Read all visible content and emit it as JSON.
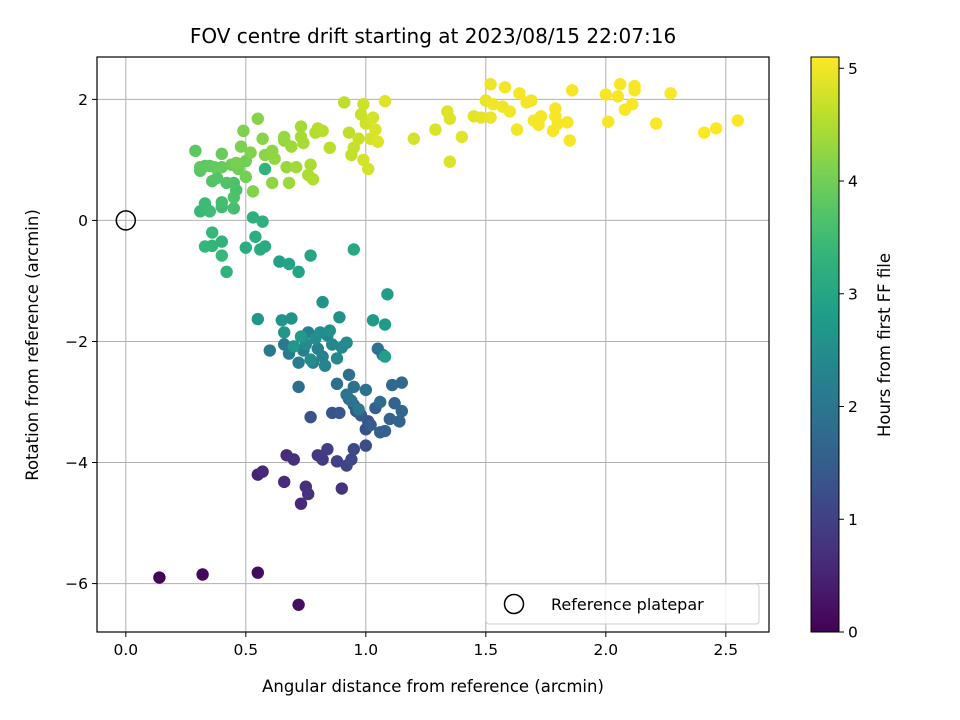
{
  "chart_data": {
    "type": "scatter",
    "title": "FOV centre drift starting at 2023/08/15 22:07:16",
    "xlabel": "Angular distance from reference (arcmin)",
    "ylabel": "Rotation from reference (arcmin)",
    "xlim": [
      -0.12,
      2.68
    ],
    "ylim": [
      -6.8,
      2.7
    ],
    "xticks": [
      "0.0",
      "0.5",
      "1.0",
      "1.5",
      "2.0",
      "2.5"
    ],
    "xtick_values": [
      0,
      0.5,
      1.0,
      1.5,
      2.0,
      2.5
    ],
    "yticks": [
      "−6",
      "−4",
      "−2",
      "0",
      "2"
    ],
    "ytick_values": [
      -6,
      -4,
      -2,
      0,
      2
    ],
    "grid": true,
    "colormap": "viridis",
    "colorbar": {
      "label": "Hours from first FF file",
      "range": [
        0,
        5.1
      ],
      "ticks": [
        "0",
        "1",
        "2",
        "3",
        "4",
        "5"
      ],
      "tick_values": [
        0,
        1,
        2,
        3,
        4,
        5
      ]
    },
    "legend": {
      "location": "lower right",
      "entries": [
        {
          "label": "Reference platepar",
          "marker": "open-circle"
        }
      ]
    },
    "reference_point": {
      "x": 0,
      "y": 0
    },
    "points": [
      [
        0.14,
        -5.9,
        0.05
      ],
      [
        0.32,
        -5.85,
        0.1
      ],
      [
        0.55,
        -5.82,
        0.15
      ],
      [
        0.72,
        -6.35,
        0.2
      ],
      [
        0.55,
        -4.2,
        0.5
      ],
      [
        0.57,
        -4.15,
        0.55
      ],
      [
        0.66,
        -4.32,
        0.6
      ],
      [
        0.67,
        -3.88,
        0.65
      ],
      [
        0.7,
        -3.95,
        0.7
      ],
      [
        0.73,
        -4.68,
        0.62
      ],
      [
        0.75,
        -4.4,
        0.68
      ],
      [
        0.76,
        -4.52,
        0.72
      ],
      [
        0.9,
        -4.43,
        0.75
      ],
      [
        0.8,
        -3.88,
        0.85
      ],
      [
        0.82,
        -3.95,
        0.9
      ],
      [
        0.84,
        -3.78,
        0.95
      ],
      [
        0.88,
        -3.98,
        1.0
      ],
      [
        0.92,
        -4.05,
        1.05
      ],
      [
        0.94,
        -3.95,
        1.1
      ],
      [
        0.95,
        -3.78,
        1.12
      ],
      [
        1.0,
        -3.72,
        1.2
      ],
      [
        1.0,
        -3.45,
        1.25
      ],
      [
        1.01,
        -3.32,
        1.28
      ],
      [
        0.77,
        -3.25,
        1.3
      ],
      [
        0.86,
        -3.18,
        1.33
      ],
      [
        0.89,
        -3.18,
        1.35
      ],
      [
        0.93,
        -2.95,
        1.4
      ],
      [
        0.95,
        -3.05,
        1.42
      ],
      [
        0.96,
        -3.15,
        1.45
      ],
      [
        0.98,
        -3.22,
        1.48
      ],
      [
        1.02,
        -3.38,
        1.5
      ],
      [
        1.04,
        -3.1,
        1.52
      ],
      [
        1.06,
        -3.5,
        1.55
      ],
      [
        1.08,
        -3.48,
        1.58
      ],
      [
        1.1,
        -3.28,
        1.6
      ],
      [
        1.12,
        -3.02,
        1.62
      ],
      [
        1.14,
        -3.32,
        1.65
      ],
      [
        1.15,
        -3.15,
        1.68
      ],
      [
        1.11,
        -2.72,
        1.72
      ],
      [
        1.15,
        -2.68,
        1.75
      ],
      [
        1.06,
        -3.0,
        1.78
      ],
      [
        0.72,
        -2.75,
        1.8
      ],
      [
        0.88,
        -2.7,
        1.82
      ],
      [
        0.93,
        -2.55,
        1.85
      ],
      [
        0.95,
        -2.75,
        1.88
      ],
      [
        1.0,
        -2.8,
        1.9
      ],
      [
        1.05,
        -2.12,
        1.92
      ],
      [
        1.07,
        -2.22,
        1.95
      ],
      [
        0.92,
        -2.88,
        1.98
      ],
      [
        0.94,
        -2.98,
        2.0
      ],
      [
        0.97,
        -3.12,
        2.02
      ],
      [
        0.6,
        -2.15,
        2.05
      ],
      [
        0.66,
        -2.05,
        2.1
      ],
      [
        0.68,
        -2.2,
        2.12
      ],
      [
        0.72,
        -2.35,
        2.15
      ],
      [
        0.74,
        -2.15,
        2.18
      ],
      [
        0.76,
        -1.85,
        2.2
      ],
      [
        0.78,
        -2.35,
        2.22
      ],
      [
        0.8,
        -2.12,
        2.25
      ],
      [
        0.82,
        -2.25,
        2.28
      ],
      [
        0.83,
        -2.4,
        2.3
      ],
      [
        0.84,
        -1.9,
        2.32
      ],
      [
        0.86,
        -2.05,
        2.35
      ],
      [
        0.88,
        -2.28,
        2.38
      ],
      [
        0.9,
        -2.1,
        2.4
      ],
      [
        0.92,
        -2.02,
        2.42
      ],
      [
        0.75,
        -2.05,
        2.45
      ],
      [
        0.77,
        -2.3,
        2.48
      ],
      [
        0.79,
        -1.95,
        2.5
      ],
      [
        0.81,
        -1.85,
        2.52
      ],
      [
        0.85,
        -1.82,
        2.55
      ],
      [
        0.89,
        -1.6,
        2.58
      ],
      [
        0.82,
        -1.35,
        2.6
      ],
      [
        0.69,
        -1.62,
        2.62
      ],
      [
        0.65,
        -1.65,
        2.65
      ],
      [
        0.66,
        -1.85,
        2.68
      ],
      [
        0.55,
        -1.63,
        2.7
      ],
      [
        0.7,
        -2.08,
        2.72
      ],
      [
        0.73,
        -1.92,
        2.75
      ],
      [
        1.03,
        -1.65,
        2.78
      ],
      [
        1.08,
        -1.72,
        2.8
      ],
      [
        1.09,
        -1.22,
        2.82
      ],
      [
        1.08,
        -2.25,
        2.85
      ],
      [
        0.64,
        -0.68,
        2.9
      ],
      [
        0.68,
        -0.72,
        2.95
      ],
      [
        0.72,
        -0.85,
        2.98
      ],
      [
        0.77,
        -0.58,
        3.0
      ],
      [
        0.95,
        -0.48,
        3.05
      ],
      [
        0.56,
        -0.48,
        3.1
      ],
      [
        0.58,
        -0.43,
        3.12
      ],
      [
        0.5,
        -0.45,
        3.15
      ],
      [
        0.54,
        -0.27,
        3.2
      ],
      [
        0.53,
        0.05,
        3.22
      ],
      [
        0.57,
        -0.02,
        3.25
      ],
      [
        0.58,
        0.85,
        3.3
      ],
      [
        0.42,
        -0.85,
        3.28
      ],
      [
        0.4,
        -0.35,
        3.32
      ],
      [
        0.36,
        -0.42,
        3.35
      ],
      [
        0.33,
        -0.43,
        3.38
      ],
      [
        0.36,
        -0.2,
        3.4
      ],
      [
        0.4,
        -0.58,
        3.42
      ],
      [
        0.31,
        0.15,
        3.45
      ],
      [
        0.33,
        0.28,
        3.48
      ],
      [
        0.35,
        0.15,
        3.5
      ],
      [
        0.4,
        0.22,
        3.52
      ],
      [
        0.4,
        0.3,
        3.55
      ],
      [
        0.45,
        0.2,
        3.58
      ],
      [
        0.46,
        0.5,
        3.6
      ],
      [
        0.45,
        0.62,
        3.62
      ],
      [
        0.45,
        0.38,
        3.65
      ],
      [
        0.42,
        0.62,
        3.68
      ],
      [
        0.36,
        0.65,
        3.7
      ],
      [
        0.38,
        0.7,
        3.72
      ],
      [
        0.31,
        0.82,
        3.75
      ],
      [
        0.33,
        0.9,
        3.78
      ],
      [
        0.29,
        1.15,
        3.8
      ],
      [
        0.31,
        0.88,
        3.82
      ],
      [
        0.35,
        0.9,
        3.85
      ],
      [
        0.37,
        0.88,
        3.88
      ],
      [
        0.4,
        0.88,
        3.9
      ],
      [
        0.4,
        1.1,
        3.92
      ],
      [
        0.44,
        0.92,
        3.95
      ],
      [
        0.47,
        0.85,
        3.98
      ],
      [
        0.5,
        0.98,
        4.0
      ],
      [
        0.5,
        0.72,
        4.02
      ],
      [
        0.46,
        0.95,
        4.05
      ],
      [
        0.48,
        1.22,
        4.08
      ],
      [
        0.49,
        1.48,
        4.1
      ],
      [
        0.52,
        1.12,
        4.12
      ],
      [
        0.53,
        0.48,
        4.14
      ],
      [
        0.55,
        1.68,
        4.16
      ],
      [
        0.57,
        1.35,
        4.18
      ],
      [
        0.58,
        1.08,
        4.2
      ],
      [
        0.61,
        1.15,
        4.22
      ],
      [
        0.61,
        0.62,
        4.24
      ],
      [
        0.62,
        1.02,
        4.26
      ],
      [
        0.66,
        1.32,
        4.28
      ],
      [
        0.66,
        1.38,
        4.3
      ],
      [
        0.67,
        0.88,
        4.32
      ],
      [
        0.68,
        0.62,
        4.34
      ],
      [
        0.69,
        1.22,
        4.36
      ],
      [
        0.71,
        0.88,
        4.38
      ],
      [
        0.73,
        1.55,
        4.4
      ],
      [
        0.73,
        1.38,
        4.42
      ],
      [
        0.74,
        1.28,
        4.44
      ],
      [
        0.76,
        0.75,
        4.46
      ],
      [
        0.77,
        0.92,
        4.48
      ],
      [
        0.78,
        0.68,
        4.5
      ],
      [
        0.79,
        1.45,
        4.52
      ],
      [
        0.8,
        1.52,
        4.54
      ],
      [
        0.82,
        1.48,
        4.56
      ],
      [
        0.85,
        1.2,
        4.58
      ],
      [
        0.91,
        1.95,
        4.6
      ],
      [
        0.93,
        1.45,
        4.62
      ],
      [
        0.94,
        1.08,
        4.64
      ],
      [
        0.95,
        1.2,
        4.66
      ],
      [
        0.97,
        1.35,
        4.68
      ],
      [
        0.98,
        1.75,
        4.7
      ],
      [
        0.99,
        1.92,
        4.72
      ],
      [
        1.0,
        1.6,
        4.74
      ],
      [
        1.01,
        0.85,
        4.76
      ],
      [
        1.02,
        1.35,
        4.78
      ],
      [
        1.03,
        1.7,
        4.8
      ],
      [
        1.04,
        1.5,
        4.82
      ],
      [
        1.05,
        1.3,
        4.84
      ],
      [
        1.08,
        1.97,
        4.86
      ],
      [
        0.99,
        1.0,
        4.78
      ],
      [
        1.2,
        1.35,
        4.8
      ],
      [
        1.29,
        1.5,
        4.82
      ],
      [
        1.34,
        1.8,
        4.84
      ],
      [
        1.35,
        1.68,
        4.86
      ],
      [
        1.35,
        0.97,
        4.85
      ],
      [
        1.4,
        1.38,
        4.88
      ],
      [
        1.45,
        1.72,
        4.9
      ],
      [
        1.48,
        1.7,
        4.92
      ],
      [
        1.5,
        1.98,
        4.94
      ],
      [
        1.52,
        1.7,
        4.96
      ],
      [
        1.52,
        2.25,
        4.98
      ],
      [
        1.53,
        1.92,
        5.0
      ],
      [
        1.57,
        1.88,
        5.0
      ],
      [
        1.58,
        2.2,
        5.02
      ],
      [
        1.6,
        1.8,
        5.02
      ],
      [
        1.63,
        1.5,
        5.02
      ],
      [
        1.64,
        2.1,
        5.03
      ],
      [
        1.67,
        1.95,
        5.03
      ],
      [
        1.69,
        1.98,
        5.03
      ],
      [
        1.7,
        1.65,
        5.04
      ],
      [
        1.72,
        1.58,
        5.04
      ],
      [
        1.73,
        1.72,
        5.04
      ],
      [
        1.78,
        1.48,
        5.04
      ],
      [
        1.8,
        1.6,
        5.05
      ],
      [
        1.84,
        1.62,
        5.05
      ],
      [
        1.85,
        1.32,
        5.05
      ],
      [
        1.86,
        2.15,
        5.05
      ],
      [
        1.79,
        1.85,
        5.05
      ],
      [
        1.79,
        1.72,
        5.05
      ],
      [
        2.0,
        2.08,
        5.06
      ],
      [
        2.01,
        1.63,
        5.06
      ],
      [
        2.05,
        2.05,
        5.06
      ],
      [
        2.06,
        2.25,
        5.06
      ],
      [
        2.08,
        1.83,
        5.07
      ],
      [
        2.11,
        1.92,
        5.07
      ],
      [
        2.12,
        2.22,
        5.07
      ],
      [
        2.12,
        2.15,
        5.07
      ],
      [
        2.21,
        1.6,
        5.08
      ],
      [
        2.27,
        2.1,
        5.08
      ],
      [
        2.41,
        1.45,
        5.09
      ],
      [
        2.46,
        1.52,
        5.09
      ],
      [
        2.55,
        1.65,
        5.1
      ]
    ]
  }
}
